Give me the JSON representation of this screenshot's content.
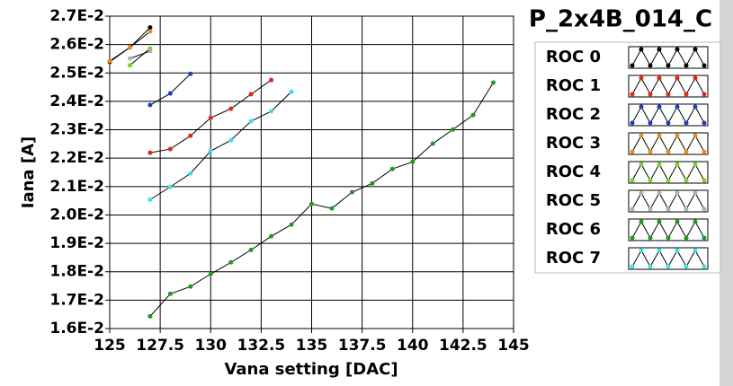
{
  "chart_data": {
    "type": "line",
    "title": "P_2x4B_014_C",
    "x_label": "Vana setting [DAC]",
    "y_label": "Iana [A]",
    "xlim": [
      125,
      145
    ],
    "xticks": [
      125,
      127.5,
      130,
      132.5,
      135,
      137.5,
      140,
      142.5,
      145
    ],
    "ylim": [
      0.016,
      0.027
    ],
    "yticks": [
      {
        "value": 0.016,
        "label": "1.6E-2"
      },
      {
        "value": 0.017,
        "label": "1.7E-2"
      },
      {
        "value": 0.018,
        "label": "1.8E-2"
      },
      {
        "value": 0.019,
        "label": "1.9E-2"
      },
      {
        "value": 0.02,
        "label": "2.0E-2"
      },
      {
        "value": 0.021,
        "label": "2.1E-2"
      },
      {
        "value": 0.022,
        "label": "2.2E-2"
      },
      {
        "value": 0.023,
        "label": "2.3E-2"
      },
      {
        "value": 0.024,
        "label": "2.4E-2"
      },
      {
        "value": 0.025,
        "label": "2.5E-2"
      },
      {
        "value": 0.026,
        "label": "2.6E-2"
      },
      {
        "value": 0.027,
        "label": "2.7E-2"
      }
    ],
    "grid": true,
    "series": [
      {
        "name": "ROC 0",
        "color": "#000000",
        "x": [
          125,
          126,
          127
        ],
        "values": [
          0.02539,
          0.0259,
          0.0266
        ]
      },
      {
        "name": "ROC 1",
        "color": "#e8231c",
        "x": [
          127,
          128,
          129,
          130,
          131,
          132,
          133
        ],
        "values": [
          0.02219,
          0.02232,
          0.02279,
          0.02342,
          0.02374,
          0.02425,
          0.02475
        ]
      },
      {
        "name": "ROC 2",
        "color": "#1a3fb8",
        "x": [
          127,
          128,
          129
        ],
        "values": [
          0.02387,
          0.02428,
          0.02497
        ]
      },
      {
        "name": "ROC 3",
        "color": "#f08a18",
        "x": [
          125,
          126,
          127
        ],
        "values": [
          0.02542,
          0.0259,
          0.02646
        ]
      },
      {
        "name": "ROC 4",
        "color": "#7ed321",
        "x": [
          126,
          127
        ],
        "values": [
          0.02527,
          0.02586
        ]
      },
      {
        "name": "ROC 5",
        "color": "#b0b0b0",
        "x": [
          126,
          127
        ],
        "values": [
          0.02551,
          0.02577
        ]
      },
      {
        "name": "ROC 6",
        "color": "#1e9a22",
        "x": [
          127,
          128,
          129,
          130,
          131,
          132,
          133,
          134,
          135,
          136,
          137,
          138,
          139,
          140,
          141,
          142,
          143,
          144
        ],
        "values": [
          0.01643,
          0.01722,
          0.01748,
          0.01792,
          0.01833,
          0.01877,
          0.01925,
          0.01966,
          0.02039,
          0.02023,
          0.0208,
          0.02111,
          0.02162,
          0.02187,
          0.02251,
          0.02301,
          0.02352,
          0.02466
        ]
      },
      {
        "name": "ROC 7",
        "color": "#3de0e8",
        "x": [
          127,
          128,
          129,
          130,
          131,
          132,
          133,
          134
        ],
        "values": [
          0.02054,
          0.02099,
          0.02146,
          0.02225,
          0.02263,
          0.0233,
          0.02365,
          0.02434
        ]
      }
    ]
  }
}
